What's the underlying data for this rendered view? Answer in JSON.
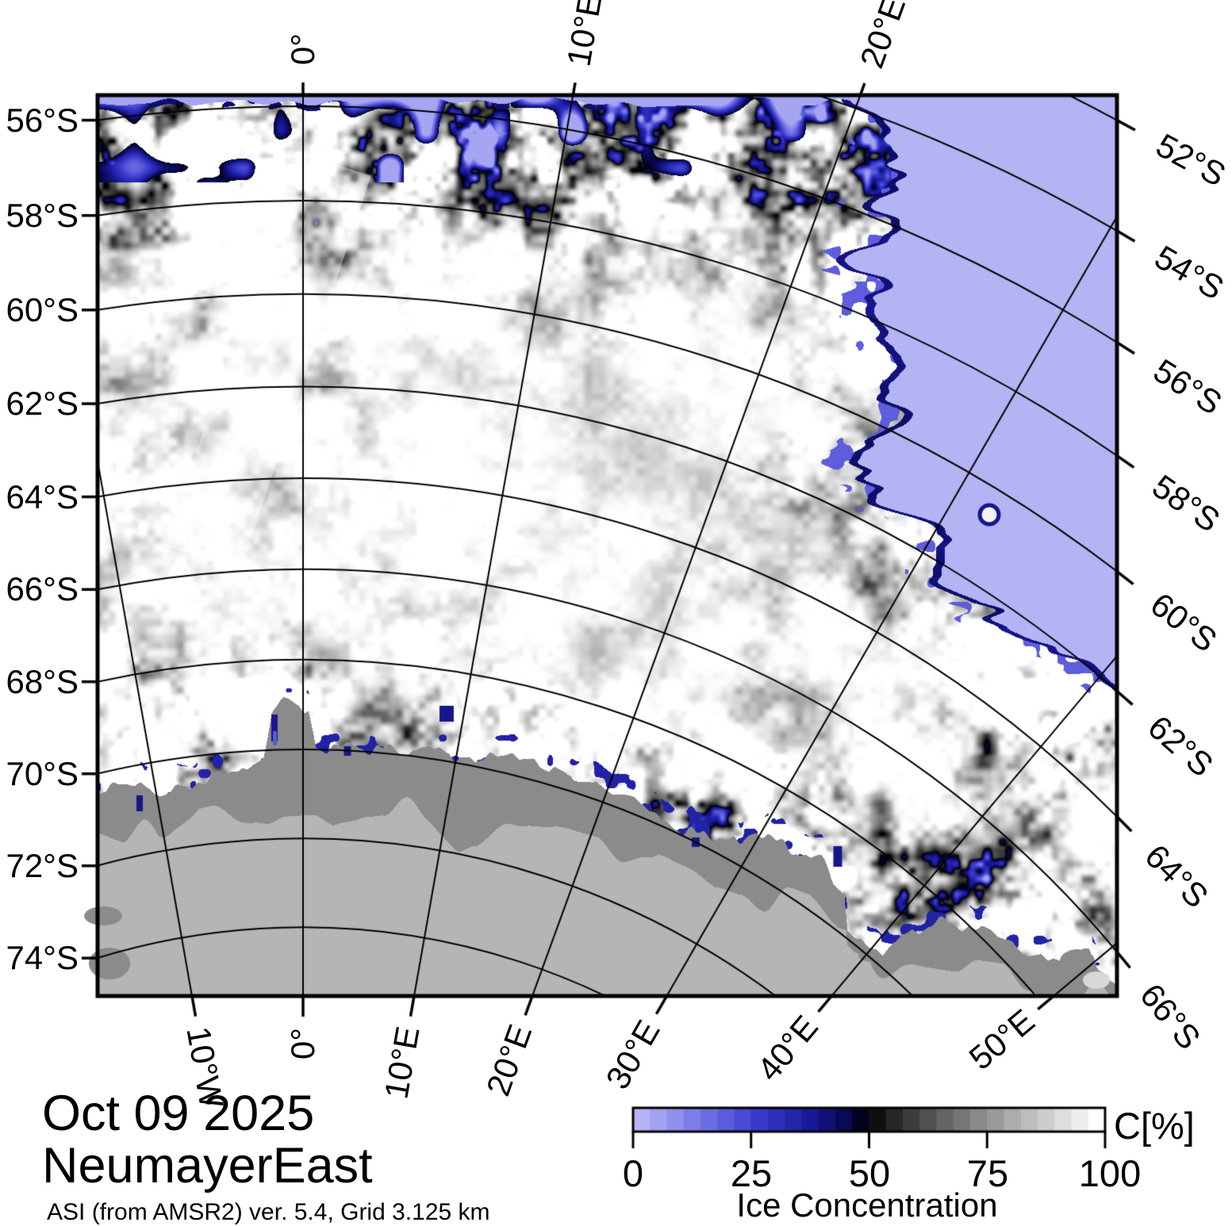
{
  "title": {
    "date": "Oct 09 2025",
    "region": "NeumayerEast",
    "source": "ASI (from AMSR2) ver. 5.4,  Grid 3.125 km"
  },
  "map": {
    "lat_labels_left": [
      {
        "lat": 56,
        "label": "56°S"
      },
      {
        "lat": 58,
        "label": "58°S"
      },
      {
        "lat": 60,
        "label": "60°S"
      },
      {
        "lat": 62,
        "label": "62°S"
      },
      {
        "lat": 64,
        "label": "64°S"
      },
      {
        "lat": 66,
        "label": "66°S"
      },
      {
        "lat": 68,
        "label": "68°S"
      },
      {
        "lat": 70,
        "label": "70°S"
      },
      {
        "lat": 72,
        "label": "72°S"
      },
      {
        "lat": 74,
        "label": "74°S"
      }
    ],
    "lat_labels_right": [
      {
        "lat": 52,
        "label": "52°S"
      },
      {
        "lat": 54,
        "label": "54°S"
      },
      {
        "lat": 56,
        "label": "56°S"
      },
      {
        "lat": 58,
        "label": "58°S"
      },
      {
        "lat": 60,
        "label": "60°S"
      },
      {
        "lat": 62,
        "label": "62°S"
      },
      {
        "lat": 64,
        "label": "64°S"
      },
      {
        "lat": 66,
        "label": "66°S"
      }
    ],
    "lon_labels_top": [
      {
        "lon": 0,
        "label": "0°"
      },
      {
        "lon": 10,
        "label": "10°E"
      },
      {
        "lon": 20,
        "label": "20°E"
      }
    ],
    "lon_labels_bottom": [
      {
        "lon": -10,
        "label": "10°W"
      },
      {
        "lon": 0,
        "label": "0°"
      },
      {
        "lon": 10,
        "label": "10°E"
      },
      {
        "lon": 20,
        "label": "20°E"
      },
      {
        "lon": 30,
        "label": "30°E"
      },
      {
        "lon": 40,
        "label": "40°E"
      },
      {
        "lon": 50,
        "label": "50°E"
      }
    ],
    "colors": {
      "ocean": "#b4b4f4",
      "land": "#b5b5b5",
      "coast": "#8b8b8b",
      "fringe": "#16168c",
      "frame": "#000000"
    }
  },
  "colorbar": {
    "ticks": [
      "0",
      "25",
      "50",
      "75",
      "100"
    ],
    "tick_values": [
      0,
      25,
      50,
      75,
      100
    ],
    "unit": "C[%]",
    "caption": "Ice Concentration"
  }
}
